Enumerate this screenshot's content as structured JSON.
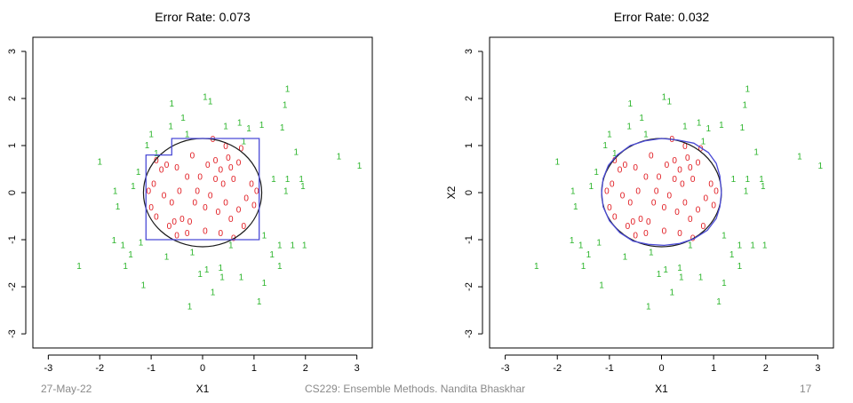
{
  "footer": {
    "date": "27-May-22",
    "center": "CS229: Ensemble Methods. Nandita Bhaskhar",
    "page": "17"
  },
  "colors": {
    "class0": "#e0191f",
    "class1": "#2db52d",
    "true_boundary": "#1a1a1a",
    "fitted_boundary": "#4b4bd6",
    "axis": "#000000",
    "background": "#ffffff"
  },
  "chart_data": [
    {
      "type": "scatter",
      "title": "Error Rate: 0.073",
      "xlabel": "X1",
      "ylabel": "",
      "xlim": [
        -3.3,
        3.3
      ],
      "ylim": [
        -3.3,
        3.3
      ],
      "xticks": [
        -3,
        -2,
        -1,
        0,
        1,
        2,
        3
      ],
      "yticks": [
        -3,
        -2,
        -1,
        0,
        1,
        2,
        3
      ],
      "grid": false,
      "legend": "none",
      "fitted_boundary_kind": "axis-aligned step boundary",
      "fitted_boundary": [
        [
          -1.1,
          0.8
        ],
        [
          -0.6,
          0.8
        ],
        [
          -0.6,
          1.15
        ],
        [
          1.1,
          1.15
        ],
        [
          1.1,
          -1.0
        ],
        [
          -1.1,
          -1.0
        ]
      ],
      "true_boundary": {
        "shape": "circle",
        "center": [
          0,
          0
        ],
        "radius": 1.15
      }
    },
    {
      "type": "scatter",
      "title": "Error Rate: 0.032",
      "xlabel": "X1",
      "ylabel": "X2",
      "xlim": [
        -3.3,
        3.3
      ],
      "ylim": [
        -3.3,
        3.3
      ],
      "xticks": [
        -3,
        -2,
        -1,
        0,
        1,
        2,
        3
      ],
      "yticks": [
        -3,
        -2,
        -1,
        0,
        1,
        2,
        3
      ],
      "grid": false,
      "legend": "none",
      "fitted_boundary_kind": "smooth jagged boundary",
      "fitted_boundary": [
        [
          1.15,
          0.0
        ],
        [
          1.12,
          0.35
        ],
        [
          1.05,
          0.62
        ],
        [
          0.9,
          0.85
        ],
        [
          0.62,
          1.05
        ],
        [
          0.3,
          1.12
        ],
        [
          0.0,
          1.15
        ],
        [
          -0.32,
          1.1
        ],
        [
          -0.6,
          1.0
        ],
        [
          -0.85,
          0.8
        ],
        [
          -1.02,
          0.58
        ],
        [
          -1.12,
          0.3
        ],
        [
          -1.15,
          0.0
        ],
        [
          -1.12,
          -0.3
        ],
        [
          -1.0,
          -0.6
        ],
        [
          -0.8,
          -0.85
        ],
        [
          -0.55,
          -1.03
        ],
        [
          -0.25,
          -1.1
        ],
        [
          0.05,
          -1.12
        ],
        [
          0.35,
          -1.08
        ],
        [
          0.62,
          -0.98
        ],
        [
          0.88,
          -0.8
        ],
        [
          1.05,
          -0.55
        ],
        [
          1.12,
          -0.3
        ]
      ],
      "true_boundary": {
        "shape": "circle",
        "center": [
          0,
          0
        ],
        "radius": 1.15
      }
    }
  ],
  "points": [
    {
      "x": -2.4,
      "y": -1.55,
      "label": "1"
    },
    {
      "x": -2.0,
      "y": 0.67,
      "label": "1"
    },
    {
      "x": -1.7,
      "y": 0.05,
      "label": "1"
    },
    {
      "x": -1.65,
      "y": -0.28,
      "label": "1"
    },
    {
      "x": -1.72,
      "y": -1.0,
      "label": "1"
    },
    {
      "x": -1.55,
      "y": -1.1,
      "label": "1"
    },
    {
      "x": -1.4,
      "y": -1.3,
      "label": "1"
    },
    {
      "x": -1.5,
      "y": -1.55,
      "label": "1"
    },
    {
      "x": -1.15,
      "y": -1.95,
      "label": "1"
    },
    {
      "x": -1.35,
      "y": 0.15,
      "label": "1"
    },
    {
      "x": -1.25,
      "y": 0.45,
      "label": "1"
    },
    {
      "x": -1.08,
      "y": 1.02,
      "label": "1"
    },
    {
      "x": -1.0,
      "y": 1.25,
      "label": "1"
    },
    {
      "x": -0.9,
      "y": 0.85,
      "label": "1"
    },
    {
      "x": -0.62,
      "y": 1.42,
      "label": "1"
    },
    {
      "x": -0.38,
      "y": 1.6,
      "label": "1"
    },
    {
      "x": -0.6,
      "y": 1.9,
      "label": "1"
    },
    {
      "x": -0.3,
      "y": 1.25,
      "label": "1"
    },
    {
      "x": 0.05,
      "y": 2.05,
      "label": "1"
    },
    {
      "x": 0.15,
      "y": 1.95,
      "label": "1"
    },
    {
      "x": 0.45,
      "y": 1.42,
      "label": "1"
    },
    {
      "x": 0.72,
      "y": 1.5,
      "label": "1"
    },
    {
      "x": 0.9,
      "y": 1.38,
      "label": "1"
    },
    {
      "x": 1.15,
      "y": 1.45,
      "label": "1"
    },
    {
      "x": 1.55,
      "y": 1.4,
      "label": "1"
    },
    {
      "x": 1.6,
      "y": 1.88,
      "label": "1"
    },
    {
      "x": 1.65,
      "y": 2.22,
      "label": "1"
    },
    {
      "x": 1.82,
      "y": 0.88,
      "label": "1"
    },
    {
      "x": 2.65,
      "y": 0.78,
      "label": "1"
    },
    {
      "x": 3.05,
      "y": 0.58,
      "label": "1"
    },
    {
      "x": 1.38,
      "y": 0.3,
      "label": "1"
    },
    {
      "x": 1.65,
      "y": 0.3,
      "label": "1"
    },
    {
      "x": 1.92,
      "y": 0.3,
      "label": "1"
    },
    {
      "x": 1.95,
      "y": 0.15,
      "label": "1"
    },
    {
      "x": 1.62,
      "y": 0.05,
      "label": "1"
    },
    {
      "x": 1.2,
      "y": -0.9,
      "label": "1"
    },
    {
      "x": 1.5,
      "y": -1.1,
      "label": "1"
    },
    {
      "x": 1.75,
      "y": -1.1,
      "label": "1"
    },
    {
      "x": 1.98,
      "y": -1.1,
      "label": "1"
    },
    {
      "x": 1.35,
      "y": -1.3,
      "label": "1"
    },
    {
      "x": 1.5,
      "y": -1.55,
      "label": "1"
    },
    {
      "x": 1.2,
      "y": -1.9,
      "label": "1"
    },
    {
      "x": 1.1,
      "y": -2.3,
      "label": "1"
    },
    {
      "x": 0.75,
      "y": -1.78,
      "label": "1"
    },
    {
      "x": 0.35,
      "y": -1.58,
      "label": "1"
    },
    {
      "x": 0.38,
      "y": -1.78,
      "label": "1"
    },
    {
      "x": 0.08,
      "y": -1.62,
      "label": "1"
    },
    {
      "x": -0.05,
      "y": -1.72,
      "label": "1"
    },
    {
      "x": 0.2,
      "y": -2.1,
      "label": "1"
    },
    {
      "x": -0.25,
      "y": -2.4,
      "label": "1"
    },
    {
      "x": -0.7,
      "y": -1.35,
      "label": "1"
    },
    {
      "x": -0.2,
      "y": -1.25,
      "label": "1"
    },
    {
      "x": 0.55,
      "y": -1.1,
      "label": "1"
    },
    {
      "x": -1.2,
      "y": -1.05,
      "label": "1"
    },
    {
      "x": 0.8,
      "y": 1.1,
      "label": "1"
    },
    {
      "x": -0.5,
      "y": -0.9,
      "label": "0"
    },
    {
      "x": -0.8,
      "y": 0.5,
      "label": "0"
    },
    {
      "x": -0.7,
      "y": 0.6,
      "label": "0"
    },
    {
      "x": -0.9,
      "y": 0.7,
      "label": "0"
    },
    {
      "x": -0.95,
      "y": 0.2,
      "label": "0"
    },
    {
      "x": -1.05,
      "y": 0.05,
      "label": "0"
    },
    {
      "x": -1.0,
      "y": -0.3,
      "label": "0"
    },
    {
      "x": -0.9,
      "y": -0.5,
      "label": "0"
    },
    {
      "x": -0.75,
      "y": -0.05,
      "label": "0"
    },
    {
      "x": -0.6,
      "y": -0.2,
      "label": "0"
    },
    {
      "x": -0.65,
      "y": -0.7,
      "label": "0"
    },
    {
      "x": -0.45,
      "y": 0.05,
      "label": "0"
    },
    {
      "x": -0.4,
      "y": -0.55,
      "label": "0"
    },
    {
      "x": -0.25,
      "y": -0.6,
      "label": "0"
    },
    {
      "x": -0.3,
      "y": -0.85,
      "label": "0"
    },
    {
      "x": -0.15,
      "y": -0.2,
      "label": "0"
    },
    {
      "x": -0.05,
      "y": 0.35,
      "label": "0"
    },
    {
      "x": 0.1,
      "y": 0.6,
      "label": "0"
    },
    {
      "x": 0.25,
      "y": 0.7,
      "label": "0"
    },
    {
      "x": 0.35,
      "y": 0.5,
      "label": "0"
    },
    {
      "x": 0.2,
      "y": 1.15,
      "label": "0"
    },
    {
      "x": 0.45,
      "y": 1.0,
      "label": "0"
    },
    {
      "x": 0.5,
      "y": 0.75,
      "label": "0"
    },
    {
      "x": 0.55,
      "y": 0.55,
      "label": "0"
    },
    {
      "x": 0.7,
      "y": 0.65,
      "label": "0"
    },
    {
      "x": 0.6,
      "y": 0.3,
      "label": "0"
    },
    {
      "x": 0.4,
      "y": 0.2,
      "label": "0"
    },
    {
      "x": 0.15,
      "y": -0.05,
      "label": "0"
    },
    {
      "x": 0.05,
      "y": -0.3,
      "label": "0"
    },
    {
      "x": 0.3,
      "y": -0.4,
      "label": "0"
    },
    {
      "x": 0.45,
      "y": -0.2,
      "label": "0"
    },
    {
      "x": 0.55,
      "y": -0.55,
      "label": "0"
    },
    {
      "x": 0.7,
      "y": -0.35,
      "label": "0"
    },
    {
      "x": 0.85,
      "y": -0.1,
      "label": "0"
    },
    {
      "x": 0.95,
      "y": 0.2,
      "label": "0"
    },
    {
      "x": 1.0,
      "y": -0.25,
      "label": "0"
    },
    {
      "x": 0.8,
      "y": -0.7,
      "label": "0"
    },
    {
      "x": 0.6,
      "y": -0.95,
      "label": "0"
    },
    {
      "x": 0.35,
      "y": -0.85,
      "label": "0"
    },
    {
      "x": 0.05,
      "y": -0.8,
      "label": "0"
    },
    {
      "x": -0.2,
      "y": 0.8,
      "label": "0"
    },
    {
      "x": -0.5,
      "y": 0.55,
      "label": "0"
    },
    {
      "x": -0.3,
      "y": 0.35,
      "label": "0"
    },
    {
      "x": -0.1,
      "y": 0.05,
      "label": "0"
    },
    {
      "x": 0.25,
      "y": 0.3,
      "label": "0"
    },
    {
      "x": 0.75,
      "y": 0.95,
      "label": "0"
    },
    {
      "x": -0.55,
      "y": -0.6,
      "label": "0"
    },
    {
      "x": 1.05,
      "y": 0.05,
      "label": "0"
    }
  ]
}
